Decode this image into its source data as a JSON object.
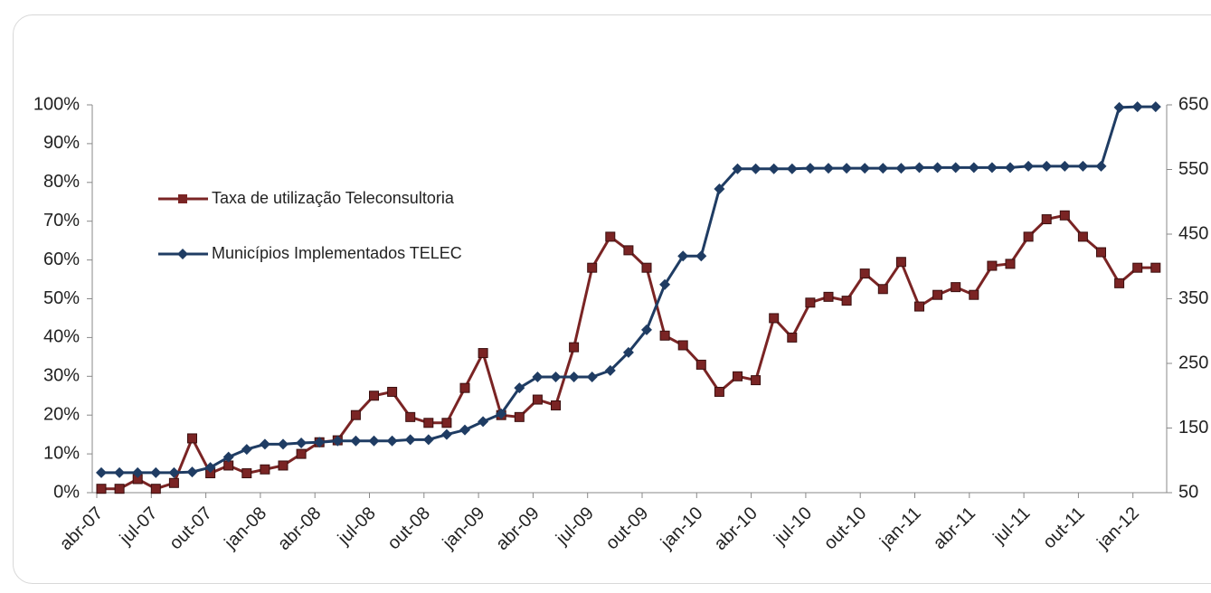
{
  "chart_data": {
    "type": "line",
    "categories": [
      "abr-07",
      null,
      null,
      "jul-07",
      null,
      null,
      "out-07",
      null,
      null,
      "jan-08",
      null,
      null,
      "abr-08",
      null,
      null,
      "jul-08",
      null,
      null,
      "out-08",
      null,
      null,
      "jan-09",
      null,
      null,
      "abr-09",
      null,
      null,
      "jul-09",
      null,
      null,
      "out-09",
      null,
      null,
      "jan-10",
      null,
      null,
      "abr-10",
      null,
      null,
      "jul-10",
      null,
      null,
      "out-10",
      null,
      null,
      "jan-11",
      null,
      null,
      "abr-11",
      null,
      null,
      "jul-11",
      null,
      null,
      "out-11",
      null,
      null,
      "jan-12",
      null
    ],
    "series": [
      {
        "name": "Taxa de utilização Teleconsultoria",
        "color": "#7a2424",
        "marker": "square",
        "values": [
          1,
          1,
          3.5,
          1,
          2.5,
          14,
          5,
          7,
          5,
          6,
          7,
          10,
          13,
          13.5,
          20,
          25,
          26,
          19.5,
          18,
          18,
          27,
          36,
          20,
          19.5,
          24,
          22.5,
          37.5,
          58,
          66,
          62.5,
          58,
          40.5,
          38,
          33,
          26,
          30,
          29,
          45,
          40,
          49,
          50.5,
          49.5,
          56.5,
          52.5,
          59.5,
          48,
          51,
          53,
          51,
          58.5,
          59,
          66,
          70.5,
          71.5,
          66,
          62,
          54,
          58,
          58
        ]
      },
      {
        "name": "Municípios Implementados TELEC",
        "color": "#1f3c63",
        "marker": "diamond",
        "axis": "y2",
        "values": [
          81,
          81,
          81,
          81,
          81,
          82,
          89,
          105,
          117,
          125,
          125,
          127,
          128,
          130,
          130,
          130,
          130,
          132,
          132,
          140,
          147,
          160,
          172,
          212,
          229,
          229,
          229,
          229,
          239,
          267,
          302,
          372,
          416,
          416,
          520,
          551,
          551,
          551,
          551,
          552,
          552,
          552,
          552,
          552,
          552,
          553,
          553,
          553,
          553,
          553,
          553,
          555,
          555,
          555,
          555,
          555,
          646,
          647,
          647
        ]
      }
    ],
    "ylim": [
      0,
      100
    ],
    "yticks": [
      {
        "value": 0,
        "label": "0%"
      },
      {
        "value": 10,
        "label": "10%"
      },
      {
        "value": 20,
        "label": "20%"
      },
      {
        "value": 30,
        "label": "30%"
      },
      {
        "value": 40,
        "label": "40%"
      },
      {
        "value": 50,
        "label": "50%"
      },
      {
        "value": 60,
        "label": "60%"
      },
      {
        "value": 70,
        "label": "70%"
      },
      {
        "value": 80,
        "label": "80%"
      },
      {
        "value": 90,
        "label": "90%"
      },
      {
        "value": 100,
        "label": "100%"
      }
    ],
    "y2lim": [
      50,
      650
    ],
    "y2ticks": [
      50,
      150,
      250,
      350,
      450,
      550,
      650
    ],
    "legend": "upper-left"
  }
}
